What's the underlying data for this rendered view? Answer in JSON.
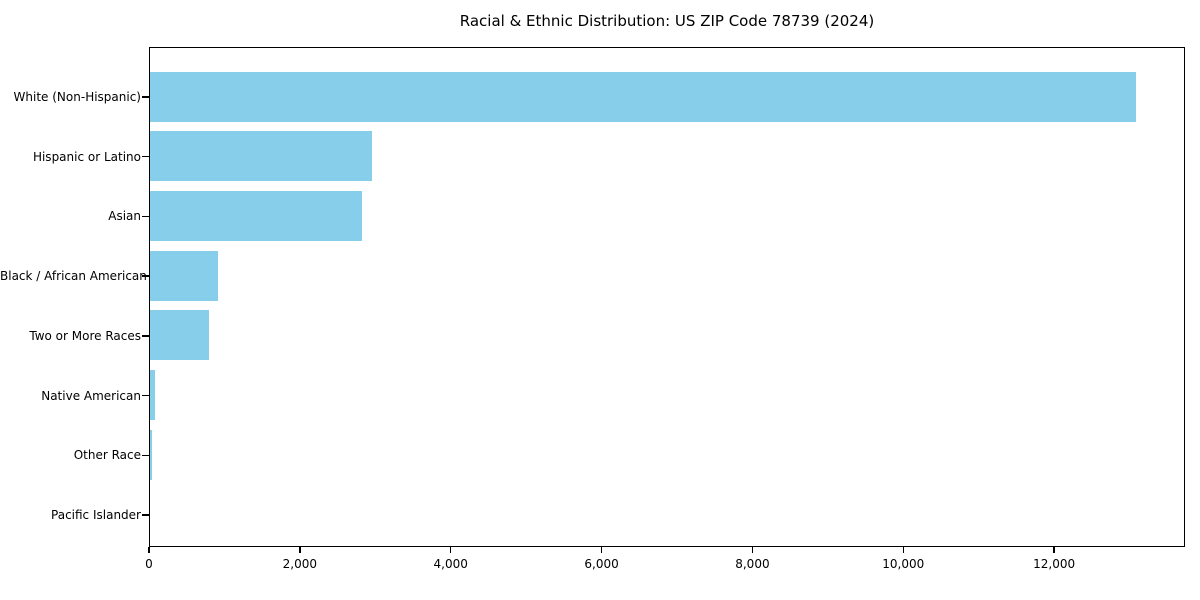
{
  "chart_data": {
    "type": "bar",
    "orientation": "horizontal",
    "title": "Racial & Ethnic Distribution: US ZIP Code 78739 (2024)",
    "categories": [
      "White (Non-Hispanic)",
      "Hispanic or Latino",
      "Asian",
      "Black / African American",
      "Two or More Races",
      "Native American",
      "Other Race",
      "Pacific Islander"
    ],
    "values": [
      13100,
      2950,
      2810,
      900,
      780,
      60,
      30,
      0
    ],
    "bar_color": "#87CEEB",
    "xlabel": "",
    "ylabel": "",
    "xlim": [
      0,
      13735
    ],
    "x_ticks": [
      0,
      2000,
      4000,
      6000,
      8000,
      10000,
      12000
    ],
    "x_tick_labels": [
      "0",
      "2,000",
      "4,000",
      "6,000",
      "8,000",
      "10,000",
      "12,000"
    ],
    "grid": false,
    "legend": null,
    "frame_color": "#000000",
    "background_color": "#ffffff"
  }
}
